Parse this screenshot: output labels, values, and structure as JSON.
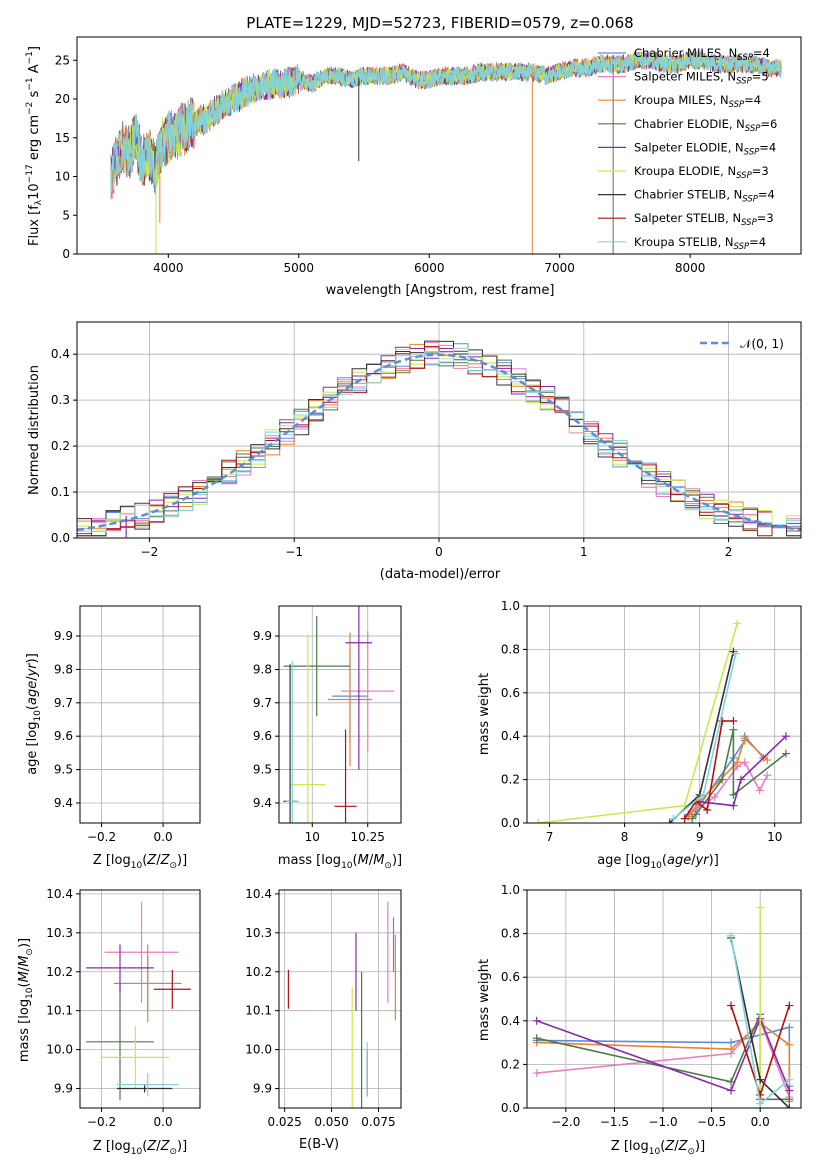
{
  "palette": {
    "chabrier_miles": "#5b8ed6",
    "salpeter_miles": "#e87fc0",
    "kroupa_miles": "#e8842e",
    "chabrier_elodie": "#4e7a4e",
    "salpeter_elodie": "#8b2aa8",
    "kroupa_elodie": "#cde84a",
    "chabrier_stelib": "#333333",
    "salpeter_stelib": "#b01010",
    "kroupa_stelib": "#7fd4dc",
    "normal": "#5b8ed6"
  },
  "chart_data": [
    {
      "id": "spectrum",
      "type": "line",
      "title": "PLATE=1229, MJD=52723, FIBERID=0579, z=0.068",
      "xlabel": "wavelength [Angstrom, rest frame]",
      "ylabel": "Flux [f_λ10^-17 erg cm^-2 s^-1 A^-1]",
      "xlim": [
        3300,
        8850
      ],
      "ylim": [
        0,
        28
      ],
      "xticks": [
        4000,
        5000,
        6000,
        7000,
        8000
      ],
      "yticks": [
        0,
        5,
        10,
        15,
        20,
        25
      ],
      "grid": false,
      "legend_position": "right",
      "spectrum_x": [
        3560,
        3600,
        3650,
        3700,
        3750,
        3800,
        3850,
        3900,
        3950,
        4000,
        4100,
        4200,
        4300,
        4400,
        4500,
        4600,
        4700,
        4800,
        4900,
        5000,
        5100,
        5200,
        5300,
        5400,
        5500,
        5600,
        5700,
        5800,
        5900,
        6000,
        6100,
        6200,
        6300,
        6400,
        6500,
        6600,
        6700,
        6800,
        6900,
        7000,
        7100,
        7200,
        7300,
        7400,
        7500,
        7600,
        7700,
        7800,
        7900,
        8000,
        8100,
        8200,
        8300,
        8400,
        8500,
        8600,
        8700
      ],
      "spectrum_y": [
        10,
        12,
        14,
        13,
        15,
        12,
        13,
        11,
        14,
        15,
        16,
        17,
        17.5,
        19,
        20,
        21,
        21.5,
        22,
        22,
        22.5,
        22,
        23,
        23,
        22.5,
        23,
        23,
        23,
        23.5,
        22.5,
        22.5,
        23,
        23,
        23,
        23.5,
        23.5,
        23.5,
        23.5,
        23.5,
        23,
        23.5,
        24,
        24,
        24.5,
        24.5,
        24.5,
        25,
        25,
        24.5,
        24.5,
        25,
        25,
        24.5,
        24.5,
        24.5,
        24.5,
        24,
        24
      ],
      "legend": [
        "Chabrier MILES, N_SSP=4",
        "Salpeter MILES, N_SSP=5",
        "Kroupa MILES, N_SSP=4",
        "Chabrier ELODIE, N_SSP=6",
        "Salpeter ELODIE, N_SSP=4",
        "Kroupa ELODIE, N_SSP=3",
        "Chabrier STELIB, N_SSP=4",
        "Salpeter STELIB, N_SSP=3",
        "Kroupa STELIB, N_SSP=4"
      ]
    },
    {
      "id": "residuals",
      "type": "line",
      "xlabel": "(data-model)/error",
      "ylabel": "Normed distribution",
      "xlim": [
        -2.5,
        2.5
      ],
      "ylim": [
        0,
        0.47
      ],
      "xticks": [
        -2,
        -1,
        0,
        1,
        2
      ],
      "yticks": [
        0.0,
        0.1,
        0.2,
        0.3,
        0.4
      ],
      "grid": true,
      "legend_position": "top-right",
      "legend": [
        "𝒩(0, 1)"
      ],
      "bin_width": 0.1
    },
    {
      "id": "age_vs_Z",
      "type": "scatter",
      "xlabel": "Z [log10(Z/Z⊙)]",
      "ylabel": "age  [log10(age/yr)]",
      "xlim": [
        -0.27,
        0.12
      ],
      "ylim": [
        9.34,
        9.99
      ],
      "xticks": [
        -0.2,
        0.0
      ],
      "yticks": [
        9.4,
        9.5,
        9.6,
        9.7,
        9.8,
        9.9
      ],
      "grid": true,
      "points": [
        {
          "x": -0.12,
          "y": 9.72,
          "xerr": 0.11,
          "yerr": 0.14
        },
        {
          "x": -0.02,
          "y": 9.735,
          "xerr": 0.09,
          "yerr": 0.18
        },
        {
          "x": 0.0,
          "y": 9.71,
          "xerr": 0.08,
          "yerr": 0.2
        },
        {
          "x": -0.15,
          "y": 9.81,
          "xerr": 0.09,
          "yerr": 0.15
        },
        {
          "x": -0.12,
          "y": 9.88,
          "xerr": 0.11,
          "yerr": 0.38
        },
        {
          "x": 0.0,
          "y": 9.455,
          "xerr": 0.11,
          "yerr": 0.45
        },
        {
          "x": -0.15,
          "y": 9.405,
          "xerr": 0.12,
          "yerr": 0.41
        },
        {
          "x": 0.05,
          "y": 9.39,
          "xerr": 0.06,
          "yerr": 0.23
        },
        {
          "x": -0.15,
          "y": 9.395,
          "xerr": 0.1,
          "yerr": 0.42
        }
      ]
    },
    {
      "id": "age_vs_mass",
      "type": "scatter",
      "xlabel": "mass [log10(M/M⊙)]",
      "ylabel": "",
      "xlim": [
        9.85,
        10.4
      ],
      "ylim": [
        9.34,
        9.99
      ],
      "xticks": [
        10.0,
        10.25
      ],
      "yticks": [
        9.4,
        9.5,
        9.6,
        9.7,
        9.8,
        9.9
      ],
      "grid": true,
      "points": [
        {
          "x": 10.17,
          "y": 9.72,
          "xerr": 0.08,
          "yerr": 0.14
        },
        {
          "x": 10.25,
          "y": 9.735,
          "xerr": 0.12,
          "yerr": 0.18
        },
        {
          "x": 10.17,
          "y": 9.71,
          "xerr": 0.1,
          "yerr": 0.2
        },
        {
          "x": 10.02,
          "y": 9.81,
          "xerr": 0.15,
          "yerr": 0.15
        },
        {
          "x": 10.21,
          "y": 9.88,
          "xerr": 0.06,
          "yerr": 0.38
        },
        {
          "x": 9.98,
          "y": 9.455,
          "xerr": 0.08,
          "yerr": 0.45
        },
        {
          "x": 9.9,
          "y": 9.405,
          "xerr": 0.03,
          "yerr": 0.41
        },
        {
          "x": 10.15,
          "y": 9.39,
          "xerr": 0.05,
          "yerr": 0.23
        },
        {
          "x": 9.91,
          "y": 9.405,
          "xerr": 0.03,
          "yerr": 0.42
        }
      ]
    },
    {
      "id": "weight_vs_age",
      "type": "line",
      "xlabel": "age  [log10(age/yr)]",
      "ylabel": "mass weight",
      "xlim": [
        6.7,
        10.35
      ],
      "ylim": [
        0,
        1.0
      ],
      "xticks": [
        7,
        8,
        9,
        10
      ],
      "yticks": [
        0.0,
        0.2,
        0.4,
        0.6,
        0.8,
        1.0
      ],
      "grid": true,
      "series": [
        {
          "x": [
            8.85,
            8.95,
            9.45,
            9.6,
            9.6,
            9.85
          ],
          "y": [
            0.04,
            0.06,
            0.3,
            0.38,
            0.4,
            0.3
          ]
        },
        {
          "x": [
            8.9,
            9.2,
            9.5,
            9.6,
            9.8,
            9.9
          ],
          "y": [
            0.05,
            0.12,
            0.26,
            0.28,
            0.15,
            0.22
          ]
        },
        {
          "x": [
            8.85,
            9.0,
            9.5,
            9.6,
            9.9
          ],
          "y": [
            0.03,
            0.1,
            0.28,
            0.39,
            0.29
          ]
        },
        {
          "x": [
            8.9,
            8.95,
            9.3,
            9.45,
            9.45,
            10.15
          ],
          "y": [
            0.02,
            0.04,
            0.2,
            0.43,
            0.13,
            0.32
          ]
        },
        {
          "x": [
            8.95,
            9.45,
            9.55,
            10.15
          ],
          "y": [
            0.1,
            0.08,
            0.2,
            0.4
          ]
        },
        {
          "x": [
            6.85,
            8.8,
            9.5
          ],
          "y": [
            0.0,
            0.08,
            0.92
          ]
        },
        {
          "x": [
            8.6,
            9.0,
            9.45
          ],
          "y": [
            0.0,
            0.13,
            0.79
          ]
        },
        {
          "x": [
            8.8,
            8.95,
            9.1,
            9.3,
            9.45
          ],
          "y": [
            0.02,
            0.1,
            0.06,
            0.47,
            0.47
          ]
        },
        {
          "x": [
            8.65,
            9.05,
            9.48
          ],
          "y": [
            0.02,
            0.13,
            0.78
          ]
        }
      ]
    },
    {
      "id": "mass_vs_Z",
      "type": "scatter",
      "xlabel": "Z [log10(Z/Z⊙)]",
      "ylabel": "mass [log10(M/M⊙)]",
      "xlim": [
        -0.27,
        0.12
      ],
      "ylim": [
        9.85,
        10.41
      ],
      "xticks": [
        -0.2,
        0.0
      ],
      "yticks": [
        9.9,
        10.0,
        10.1,
        10.2,
        10.3,
        10.4
      ],
      "grid": true,
      "points": [
        {
          "x": -0.05,
          "y": 10.17,
          "xerr": 0.11,
          "yerr": 0.07
        },
        {
          "x": -0.07,
          "y": 10.25,
          "xerr": 0.12,
          "yerr": 0.13
        },
        {
          "x": -0.05,
          "y": 10.17,
          "xerr": 0.1,
          "yerr": 0.1
        },
        {
          "x": -0.14,
          "y": 10.02,
          "xerr": 0.11,
          "yerr": 0.15
        },
        {
          "x": -0.14,
          "y": 10.21,
          "xerr": 0.11,
          "yerr": 0.06
        },
        {
          "x": -0.09,
          "y": 9.98,
          "xerr": 0.11,
          "yerr": 0.08
        },
        {
          "x": -0.06,
          "y": 9.9,
          "xerr": 0.09,
          "yerr": 0.01
        },
        {
          "x": 0.03,
          "y": 10.155,
          "xerr": 0.06,
          "yerr": 0.05
        },
        {
          "x": -0.05,
          "y": 9.91,
          "xerr": 0.1,
          "yerr": 0.03
        }
      ]
    },
    {
      "id": "mass_vs_ebv",
      "type": "scatter",
      "xlabel": "E(B-V)",
      "ylabel": "",
      "xlim": [
        0.022,
        0.087
      ],
      "ylim": [
        9.85,
        10.41
      ],
      "xticks": [
        0.025,
        0.05,
        0.075
      ],
      "xtick_labels": [
        "0.025",
        "0.050",
        "0.075"
      ],
      "yticks": [
        9.9,
        10.0,
        10.1,
        10.2,
        10.3,
        10.4
      ],
      "grid": true,
      "points": [
        {
          "x": 0.083,
          "y": 10.27,
          "yerr": 0.07
        },
        {
          "x": 0.08,
          "y": 10.25,
          "yerr": 0.13
        },
        {
          "x": 0.084,
          "y": 10.185,
          "yerr": 0.11
        },
        {
          "x": 0.066,
          "y": 10.0,
          "yerr": 0.2
        },
        {
          "x": 0.063,
          "y": 10.2,
          "yerr": 0.1
        },
        {
          "x": 0.061,
          "y": 10.0,
          "yerr": 0.16
        },
        {
          "x": 0.069,
          "y": 9.94,
          "yerr": 0.06
        },
        {
          "x": 0.027,
          "y": 10.155,
          "yerr": 0.05
        },
        {
          "x": 0.069,
          "y": 9.95,
          "yerr": 0.07
        }
      ]
    },
    {
      "id": "weight_vs_Z",
      "type": "line",
      "xlabel": "Z [log10(Z/Z⊙)]",
      "ylabel": "mass weight",
      "xlim": [
        -2.4,
        0.42
      ],
      "ylim": [
        0,
        1.0
      ],
      "xticks": [
        -2.0,
        -1.5,
        -1.0,
        -0.5,
        0.0
      ],
      "yticks": [
        0.0,
        0.2,
        0.4,
        0.6,
        0.8,
        1.0
      ],
      "grid": true,
      "series": [
        {
          "x": [
            -2.3,
            -0.3,
            0.3,
            0.3
          ],
          "y": [
            0.31,
            0.3,
            0.37,
            0.1
          ]
        },
        {
          "x": [
            -2.3,
            -0.3,
            0.0,
            0.3
          ],
          "y": [
            0.16,
            0.25,
            0.4,
            0.05
          ]
        },
        {
          "x": [
            -2.3,
            -0.3,
            0.0,
            0.3,
            0.3
          ],
          "y": [
            0.3,
            0.27,
            0.39,
            0.29,
            0.03
          ]
        },
        {
          "x": [
            -2.3,
            -0.3,
            0.0,
            0.0,
            0.3
          ],
          "y": [
            0.32,
            0.12,
            0.43,
            0.04,
            0.04
          ]
        },
        {
          "x": [
            -2.3,
            -0.3,
            0.0,
            0.3
          ],
          "y": [
            0.4,
            0.08,
            0.41,
            0.08
          ]
        },
        {
          "x": [
            0.0,
            0.0,
            0.0
          ],
          "y": [
            0.0,
            0.08,
            0.92
          ]
        },
        {
          "x": [
            -0.3,
            0.0,
            0.3
          ],
          "y": [
            0.78,
            0.13,
            0.0
          ]
        },
        {
          "x": [
            -0.3,
            0.0,
            0.3
          ],
          "y": [
            0.47,
            0.06,
            0.47
          ]
        },
        {
          "x": [
            -0.3,
            0.0,
            0.3
          ],
          "y": [
            0.79,
            0.02,
            0.13
          ]
        }
      ]
    }
  ]
}
